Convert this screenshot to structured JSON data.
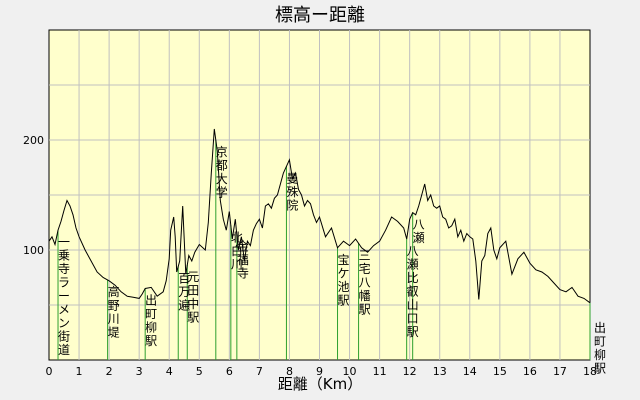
{
  "chart_data": {
    "type": "line",
    "title": "標高ー距離",
    "xlabel": "距離（Km）",
    "ylabel": "",
    "xlim": [
      0,
      18
    ],
    "ylim": [
      0,
      300
    ],
    "xticks": [
      "0",
      "1",
      "2",
      "3",
      "4",
      "5",
      "6",
      "7",
      "8",
      "9",
      "10",
      "11",
      "12",
      "13",
      "14",
      "15",
      "16",
      "17",
      "18"
    ],
    "yticks": [
      "100",
      "200"
    ],
    "grid": true,
    "series": [
      {
        "x": [
          0,
          0.1,
          0.2,
          0.3,
          0.4,
          0.5,
          0.6,
          0.7,
          0.8,
          0.9,
          1.0,
          1.2,
          1.4,
          1.6,
          1.8,
          2.0,
          2.2,
          2.4,
          2.6,
          2.8,
          3.0,
          3.1,
          3.2,
          3.4,
          3.6,
          3.8,
          3.9,
          4.0,
          4.05,
          4.15,
          4.2,
          4.25,
          4.35,
          4.45,
          4.55,
          4.65,
          4.75,
          4.85,
          5.0,
          5.2,
          5.3,
          5.4,
          5.5,
          5.6,
          5.7,
          5.8,
          5.9,
          6.0,
          6.1,
          6.2,
          6.3,
          6.4,
          6.5,
          6.6,
          6.7,
          6.8,
          6.9,
          7.0,
          7.1,
          7.2,
          7.3,
          7.4,
          7.5,
          7.6,
          7.7,
          7.8,
          7.9,
          8.0,
          8.1,
          8.2,
          8.3,
          8.4,
          8.5,
          8.6,
          8.7,
          8.8,
          8.9,
          9.0,
          9.2,
          9.4,
          9.6,
          9.8,
          10.0,
          10.2,
          10.4,
          10.6,
          10.8,
          11.0,
          11.2,
          11.4,
          11.6,
          11.8,
          11.9,
          12.0,
          12.1,
          12.2,
          12.3,
          12.4,
          12.5,
          12.6,
          12.7,
          12.8,
          12.9,
          13.0,
          13.1,
          13.2,
          13.3,
          13.4,
          13.5,
          13.6,
          13.7,
          13.8,
          13.9,
          14.0,
          14.1,
          14.2,
          14.3,
          14.4,
          14.5,
          14.6,
          14.7,
          14.8,
          14.9,
          15.0,
          15.2,
          15.4,
          15.6,
          15.8,
          16.0,
          16.2,
          16.4,
          16.6,
          16.8,
          17.0,
          17.2,
          17.4,
          17.6,
          17.8,
          18.0
        ],
        "values": [
          108,
          112,
          105,
          118,
          126,
          136,
          145,
          140,
          132,
          120,
          112,
          100,
          90,
          80,
          75,
          72,
          68,
          62,
          58,
          57,
          56,
          60,
          65,
          66,
          58,
          62,
          72,
          92,
          118,
          130,
          112,
          80,
          90,
          140,
          78,
          95,
          90,
          98,
          105,
          100,
          125,
          170,
          210,
          190,
          145,
          128,
          118,
          135,
          110,
          128,
          100,
          112,
          90,
          108,
          104,
          118,
          124,
          128,
          120,
          140,
          142,
          138,
          147,
          150,
          160,
          170,
          176,
          182,
          165,
          170,
          155,
          150,
          140,
          145,
          142,
          132,
          125,
          130,
          112,
          120,
          102,
          108,
          104,
          110,
          102,
          98,
          104,
          108,
          118,
          130,
          126,
          120,
          110,
          128,
          134,
          132,
          140,
          150,
          160,
          145,
          150,
          140,
          138,
          140,
          130,
          128,
          120,
          122,
          128,
          112,
          118,
          108,
          115,
          112,
          110,
          90,
          55,
          90,
          95,
          115,
          120,
          100,
          92,
          102,
          108,
          78,
          92,
          98,
          88,
          82,
          80,
          76,
          70,
          64,
          62,
          66,
          58,
          56,
          52
        ]
      }
    ],
    "landmarks": [
      {
        "x": 0.3,
        "label": "一乗寺ラーメン街道"
      },
      {
        "x": 1.95,
        "label": "高野川堤"
      },
      {
        "x": 3.2,
        "label": "出町柳駅"
      },
      {
        "x": 4.3,
        "label": "百万遍"
      },
      {
        "x": 4.6,
        "label": "元田中駅"
      },
      {
        "x": 5.55,
        "label": "京都大学"
      },
      {
        "x": 6.05,
        "label": "北白川"
      },
      {
        "x": 6.25,
        "label": "金福寺"
      },
      {
        "x": 7.9,
        "label": "曼殊院"
      },
      {
        "x": 9.6,
        "label": "宝ケ池駅"
      },
      {
        "x": 10.3,
        "label": "三宅八幡駅"
      },
      {
        "x": 11.9,
        "label": "八瀬比叡山口駅"
      },
      {
        "x": 12.1,
        "label": "八瀬"
      },
      {
        "x": 18,
        "label": "出町柳駅"
      }
    ]
  }
}
